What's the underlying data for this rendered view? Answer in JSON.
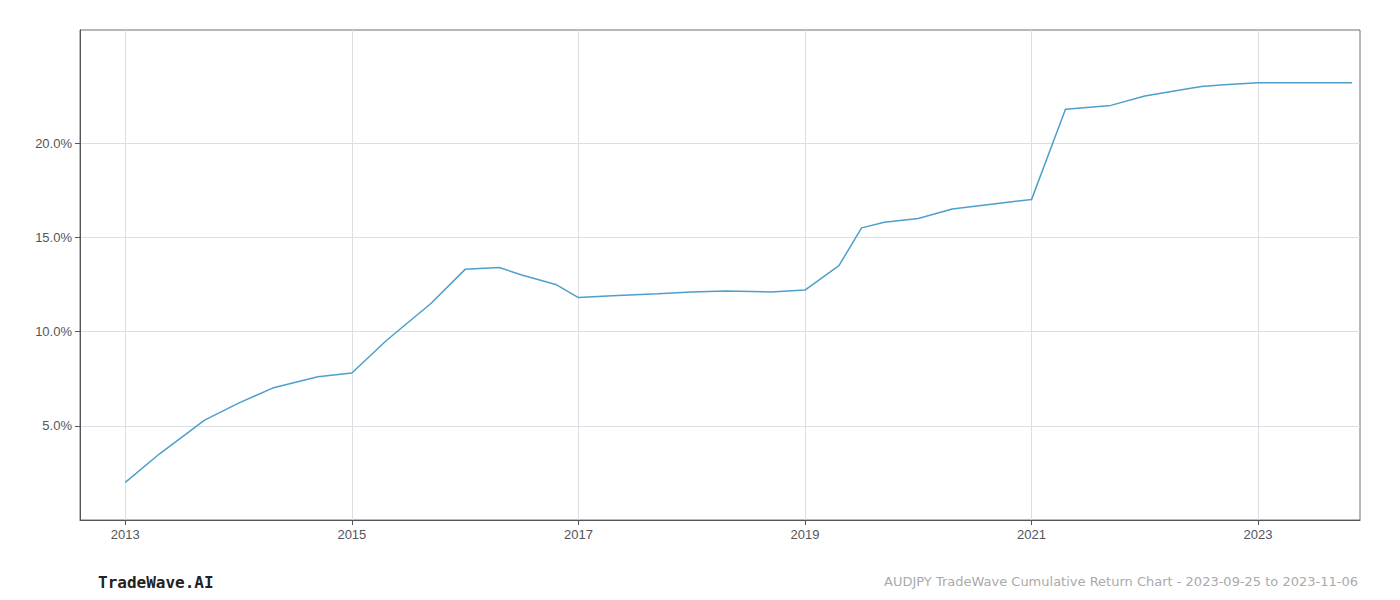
{
  "chart_data": {
    "type": "line",
    "title": "AUDJPY TradeWave Cumulative Return Chart - 2023-09-25 to 2023-11-06",
    "annotations": [
      "TradeWave.AI"
    ],
    "x": [
      2013.0,
      2013.3,
      2013.7,
      2014.0,
      2014.3,
      2014.7,
      2015.0,
      2015.3,
      2015.7,
      2016.0,
      2016.3,
      2016.5,
      2016.8,
      2017.0,
      2017.3,
      2017.7,
      2018.0,
      2018.3,
      2018.7,
      2019.0,
      2019.3,
      2019.5,
      2019.7,
      2020.0,
      2020.3,
      2020.7,
      2021.0,
      2021.3,
      2021.7,
      2022.0,
      2022.3,
      2022.5,
      2022.7,
      2023.0,
      2023.5,
      2023.83
    ],
    "values": [
      2.0,
      3.5,
      5.3,
      6.2,
      7.0,
      7.6,
      7.8,
      9.5,
      11.5,
      13.3,
      13.4,
      13.0,
      12.5,
      11.8,
      11.9,
      12.0,
      12.1,
      12.15,
      12.1,
      12.2,
      13.5,
      15.5,
      15.8,
      16.0,
      16.5,
      16.8,
      17.0,
      21.8,
      22.0,
      22.5,
      22.8,
      23.0,
      23.1,
      23.2,
      23.2,
      23.2
    ],
    "color": "#4d9fcc",
    "xlim": [
      2012.6,
      2023.9
    ],
    "xticks": [
      2013,
      2015,
      2017,
      2019,
      2021,
      2023
    ],
    "ylim": [
      0,
      26
    ],
    "yticks": [
      {
        "value": 5.0,
        "label": "5.0%"
      },
      {
        "value": 10.0,
        "label": "10.0%"
      },
      {
        "value": 15.0,
        "label": "15.0%"
      },
      {
        "value": 20.0,
        "label": "20.0%"
      }
    ],
    "grid": true
  }
}
